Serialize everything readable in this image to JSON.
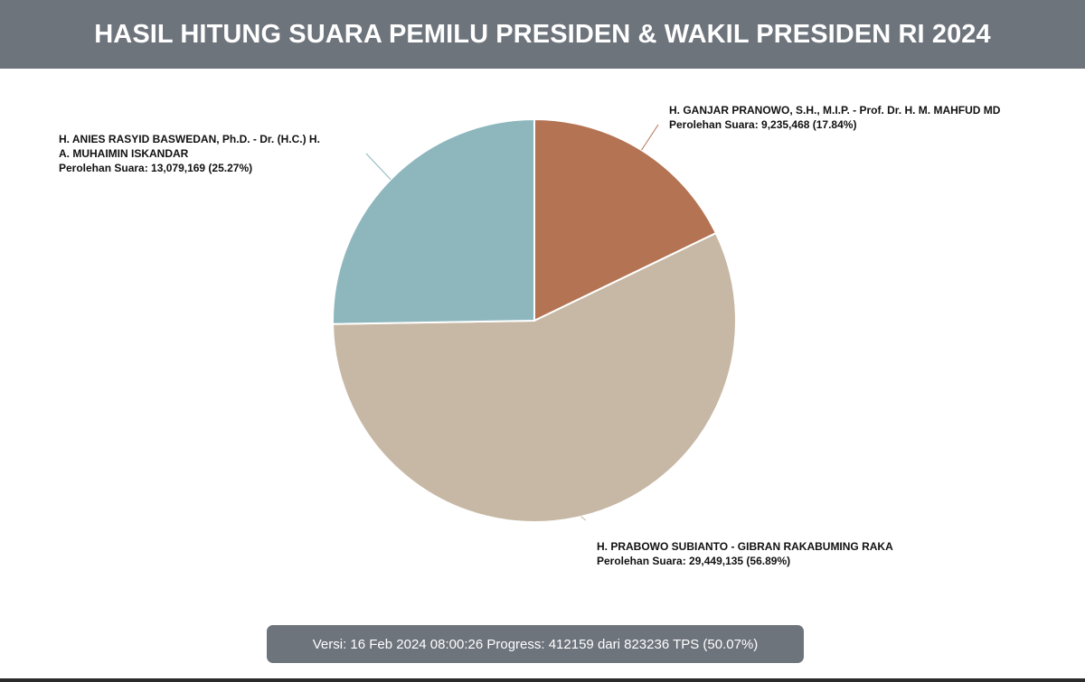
{
  "header": {
    "title": "HASIL HITUNG SUARA PEMILU PRESIDEN & WAKIL PRESIDEN RI 2024"
  },
  "chart_data": {
    "type": "pie",
    "slices": [
      {
        "name_lines": [
          "H. GANJAR PRANOWO, S.H., M.I.P. - Prof. Dr. H. M. MAHFUD MD"
        ],
        "votes_label": "Perolehan Suara: 9,235,468 (17.84%)",
        "value": 9235468,
        "percent": 17.84,
        "color": "#b47352"
      },
      {
        "name_lines": [
          "H. PRABOWO SUBIANTO - GIBRAN RAKABUMING RAKA"
        ],
        "votes_label": "Perolehan Suara: 29,449,135 (56.89%)",
        "value": 29449135,
        "percent": 56.89,
        "color": "#c7b8a5"
      },
      {
        "name_lines": [
          "H. ANIES RASYID BASWEDAN, Ph.D. - Dr. (H.C.) H.",
          "A. MUHAIMIN ISKANDAR"
        ],
        "votes_label": "Perolehan Suara: 13,079,169 (25.27%)",
        "value": 13079169,
        "percent": 25.27,
        "color": "#8db7bd"
      }
    ]
  },
  "footer": {
    "status_text": "Versi: 16 Feb 2024 08:00:26 Progress: 412159 dari 823236 TPS (50.07%)"
  },
  "colors": {
    "header_bg": "#6e747c",
    "footer_bg": "#6e747c"
  }
}
